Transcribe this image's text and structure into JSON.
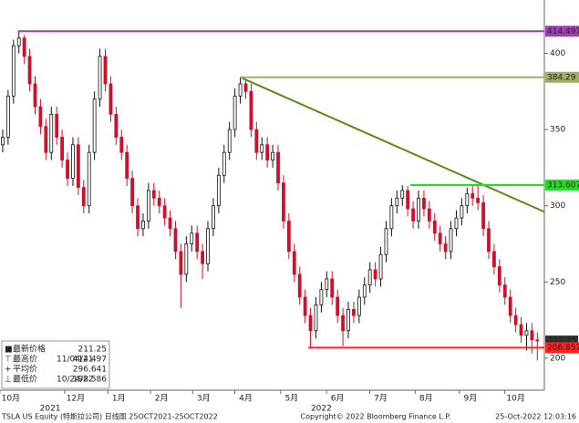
{
  "chart_data": {
    "type": "candlestick",
    "series": {
      "open": [
        340,
        345,
        372,
        405,
        410,
        398,
        380,
        365,
        352,
        335,
        360,
        345,
        330,
        318,
        340,
        312,
        300,
        335,
        370,
        398,
        380,
        360,
        345,
        335,
        318,
        300,
        285,
        290,
        310,
        305,
        300,
        292,
        285,
        270,
        255,
        275,
        282,
        270,
        262,
        285,
        300,
        320,
        335,
        350,
        372,
        380,
        375,
        350,
        335,
        340,
        330,
        335,
        315,
        290,
        270,
        255,
        240,
        228,
        218,
        235,
        245,
        252,
        240,
        228,
        218,
        232,
        228,
        240,
        248,
        258,
        252,
        268,
        285,
        300,
        305,
        310,
        298,
        290,
        305,
        298,
        290,
        282,
        275,
        270,
        285,
        292,
        300,
        308,
        305,
        302,
        285,
        270,
        260,
        248,
        240,
        228,
        222,
        215,
        218,
        212
      ],
      "high": [
        350,
        376,
        409,
        414.497,
        412,
        403,
        385,
        370,
        357,
        365,
        365,
        350,
        335,
        345,
        345,
        317,
        340,
        375,
        403,
        403,
        385,
        365,
        350,
        340,
        323,
        305,
        295,
        315,
        315,
        310,
        305,
        297,
        290,
        275,
        280,
        287,
        287,
        275,
        290,
        305,
        325,
        340,
        355,
        377,
        384.29,
        383,
        380,
        355,
        345,
        345,
        340,
        340,
        320,
        295,
        275,
        260,
        245,
        233,
        240,
        250,
        257,
        257,
        245,
        233,
        237,
        237,
        245,
        253,
        263,
        263,
        273,
        290,
        305,
        310,
        313.5,
        313,
        303,
        310,
        310,
        303,
        295,
        287,
        280,
        290,
        297,
        305,
        312,
        313,
        313.607,
        307,
        290,
        275,
        265,
        253,
        245,
        233,
        227,
        223,
        223,
        217
      ],
      "low": [
        335,
        340,
        367,
        400,
        393,
        375,
        360,
        347,
        330,
        330,
        340,
        325,
        313,
        313,
        307,
        295,
        295,
        330,
        365,
        375,
        355,
        340,
        330,
        313,
        295,
        280,
        280,
        285,
        300,
        295,
        287,
        280,
        265,
        233,
        250,
        270,
        265,
        252,
        257,
        280,
        295,
        315,
        330,
        345,
        367,
        370,
        345,
        330,
        330,
        325,
        325,
        310,
        285,
        265,
        250,
        235,
        223,
        206.857,
        213,
        230,
        240,
        235,
        223,
        208,
        213,
        223,
        223,
        235,
        243,
        247,
        247,
        263,
        280,
        295,
        300,
        293,
        285,
        285,
        293,
        285,
        277,
        270,
        265,
        265,
        280,
        287,
        295,
        300,
        297,
        280,
        265,
        255,
        243,
        235,
        223,
        217,
        210,
        205,
        203,
        198.586
      ],
      "close": [
        345,
        372,
        405,
        410,
        398,
        380,
        365,
        352,
        335,
        360,
        345,
        330,
        318,
        340,
        312,
        300,
        335,
        370,
        398,
        380,
        360,
        345,
        335,
        318,
        300,
        285,
        290,
        310,
        305,
        300,
        292,
        285,
        270,
        255,
        275,
        282,
        270,
        262,
        285,
        300,
        320,
        335,
        350,
        372,
        380,
        375,
        350,
        335,
        340,
        330,
        335,
        315,
        290,
        270,
        255,
        240,
        228,
        218,
        235,
        245,
        252,
        240,
        228,
        218,
        232,
        228,
        240,
        248,
        258,
        252,
        268,
        285,
        300,
        305,
        310,
        298,
        290,
        305,
        298,
        290,
        282,
        275,
        270,
        285,
        292,
        300,
        308,
        305,
        302,
        285,
        270,
        260,
        248,
        240,
        228,
        222,
        215,
        218,
        212,
        211.25
      ],
      "up_color": "#ffffff",
      "down_color": "#d0102a",
      "edge_color": "#111111"
    },
    "xlim": [
      -0.5,
      100.3
    ],
    "ylim": [
      179,
      435
    ],
    "yticks": [
      200,
      250,
      300,
      350,
      400
    ],
    "xticks": [
      {
        "value": 1.5,
        "label": "10月"
      },
      {
        "value": 13.5,
        "label": "12月"
      },
      {
        "value": 21.5,
        "label": "1月"
      },
      {
        "value": 29.4,
        "label": "2月"
      },
      {
        "value": 37.2,
        "label": "3月"
      },
      {
        "value": 45,
        "label": "4月"
      },
      {
        "value": 53.5,
        "label": "5月"
      },
      {
        "value": 62,
        "label": "6月"
      },
      {
        "value": 70,
        "label": "7月"
      },
      {
        "value": 78.4,
        "label": "8月"
      },
      {
        "value": 86.6,
        "label": "9月"
      },
      {
        "value": 95,
        "label": "10月"
      }
    ],
    "year_ticks": [
      {
        "value": 8.8,
        "label": "2021"
      },
      {
        "value": 59,
        "label": "2022"
      }
    ],
    "hlines": [
      {
        "value": 414.497,
        "from": 2.8,
        "color": "#a040b0"
      },
      {
        "value": 384.29,
        "from": 44,
        "color": "#a8aa68"
      },
      {
        "value": 313.607,
        "from": 75.5,
        "color": "#22dd22"
      },
      {
        "value": 206.857,
        "from": 56.6,
        "color": "#ff2020"
      }
    ],
    "last_price": {
      "value": 211.25,
      "color": "#333333"
    },
    "trendline": {
      "x": [
        44,
        100.3
      ],
      "y": [
        384.29,
        296
      ],
      "color": "#5a8a1a"
    },
    "legend": [
      {
        "symbol": "■",
        "label": "最新价格",
        "value": 211.25
      },
      {
        "symbol": "⊤",
        "label": "最高价",
        "date": "11/04/21",
        "value": 414.497
      },
      {
        "symbol": "+",
        "label": "平均价",
        "value": 296.641
      },
      {
        "symbol": "⊥",
        "label": "最低价",
        "date": "10/24/22",
        "value": 198.586
      }
    ],
    "footer": {
      "left": "TSLA US Equity (特斯拉公司)  日线图 25OCT2021-25OCT2022",
      "center": "Copyright© 2022 Bloomberg Finance L.P.",
      "right": "25-Oct-2022 12:03:16"
    }
  }
}
